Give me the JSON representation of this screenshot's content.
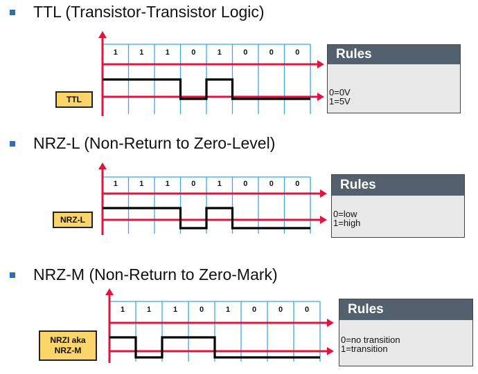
{
  "sections": [
    {
      "title": "TTL (Transistor-Transistor Logic)",
      "label": "TTL",
      "bits": [
        "1",
        "1",
        "1",
        "0",
        "1",
        "0",
        "0",
        "0"
      ],
      "levels": [
        1,
        1,
        1,
        0,
        1,
        0,
        0,
        0
      ],
      "rules_title": "Rules",
      "rules": [
        "0=0V",
        "1=5V"
      ]
    },
    {
      "title": "NRZ-L (Non-Return to Zero-Level)",
      "label": "NRZ-L",
      "bits": [
        "1",
        "1",
        "1",
        "0",
        "1",
        "0",
        "0",
        "0"
      ],
      "levels": [
        1,
        1,
        1,
        0,
        1,
        0,
        0,
        0
      ],
      "rules_title": "Rules",
      "rules": [
        "0=low",
        "1=high"
      ]
    },
    {
      "title": "NRZ-M (Non-Return to Zero-Mark)",
      "label_lines": [
        "NRZI aka",
        "NRZ-M"
      ],
      "bits": [
        "1",
        "1",
        "1",
        "0",
        "1",
        "0",
        "0",
        "0"
      ],
      "levels": [
        1,
        0,
        1,
        1,
        0,
        0,
        0,
        0
      ],
      "rules_title": "Rules",
      "rules": [
        "0=no transition",
        "1=transition"
      ]
    }
  ],
  "colors": {
    "axis": "#e0143c",
    "grid": "#3aa6e6",
    "signal": "#000000",
    "bullet": "#2f6fb3",
    "label_bg": "#fbd46a",
    "rules_header": "#53606d",
    "rules_bg": "#e8e8e8"
  }
}
